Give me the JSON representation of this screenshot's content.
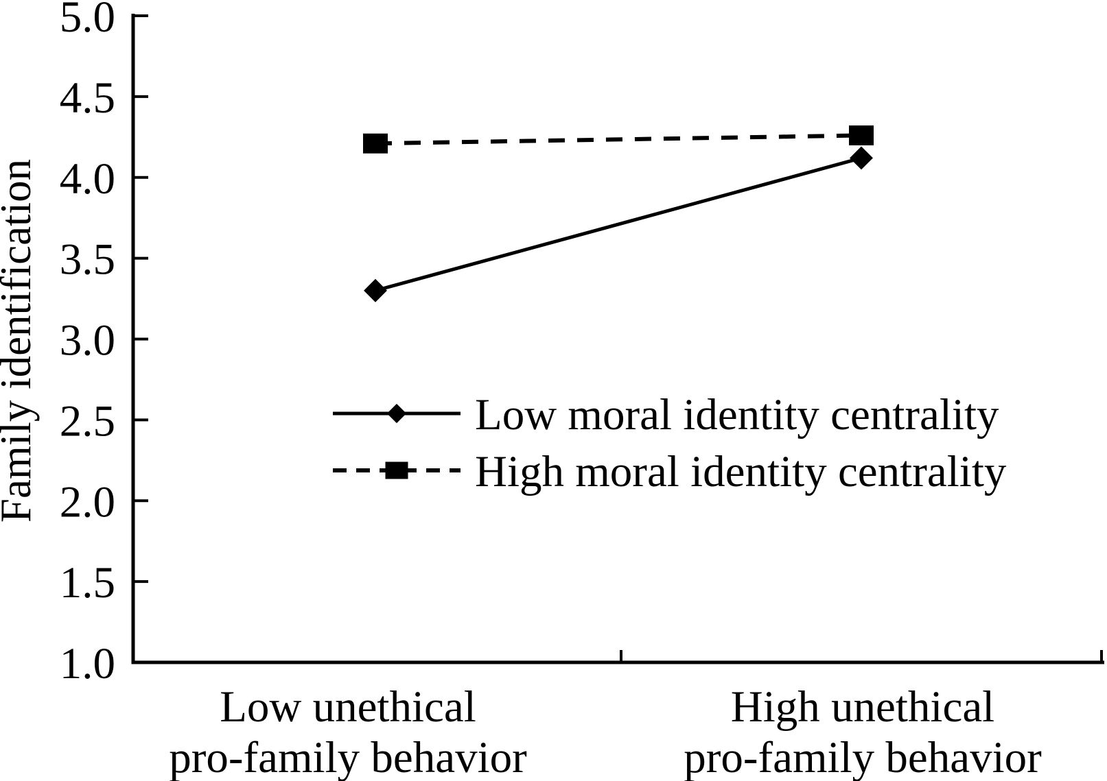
{
  "figure": {
    "background_color": "#ffffff",
    "ink_color": "#000000"
  },
  "chart_data": {
    "type": "line",
    "title": "",
    "xlabel": "",
    "ylabel": "Family identification",
    "ylim": [
      1.0,
      5.0
    ],
    "ytick_step": 0.5,
    "ytick_labels": [
      "1.0",
      "1.5",
      "2.0",
      "2.5",
      "3.0",
      "3.5",
      "4.0",
      "4.5",
      "5.0"
    ],
    "grid": false,
    "categories": [
      [
        "Low unethical",
        "pro-family behavior"
      ],
      [
        "High unethical",
        "pro-family behavior"
      ]
    ],
    "series": [
      {
        "name": "Low moral identity centrality",
        "values": [
          3.3,
          4.12
        ],
        "line_style": "solid",
        "marker": "diamond",
        "color": "#000000"
      },
      {
        "name": "High moral identity centrality",
        "values": [
          4.21,
          4.26
        ],
        "line_style": "dashed",
        "marker": "square",
        "color": "#000000"
      }
    ],
    "legend": {
      "position": "inside-middle-left",
      "entries": [
        "Low moral identity centrality",
        "High moral identity centrality"
      ]
    }
  }
}
